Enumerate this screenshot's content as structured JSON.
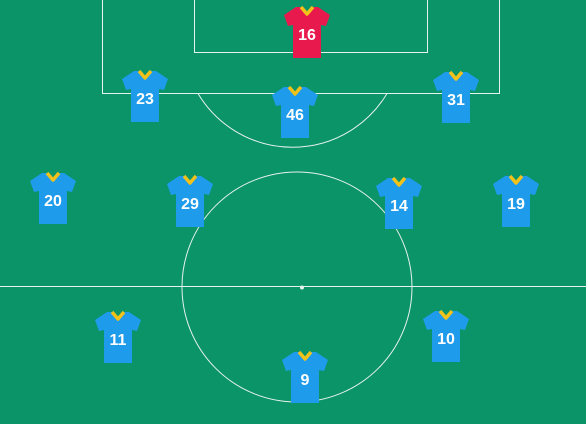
{
  "colors": {
    "pitch": "#0b9467",
    "lines": "#e6f2ec",
    "outfield_shirt": "#1e9bea",
    "keeper_shirt": "#e8194d",
    "collar": "#f2c21b"
  },
  "goalkeeper": {
    "number": "16",
    "role": "goalkeeper"
  },
  "players": [
    {
      "number": "23"
    },
    {
      "number": "46"
    },
    {
      "number": "31"
    },
    {
      "number": "20"
    },
    {
      "number": "29"
    },
    {
      "number": "14"
    },
    {
      "number": "19"
    },
    {
      "number": "11"
    },
    {
      "number": "10"
    },
    {
      "number": "9"
    }
  ]
}
